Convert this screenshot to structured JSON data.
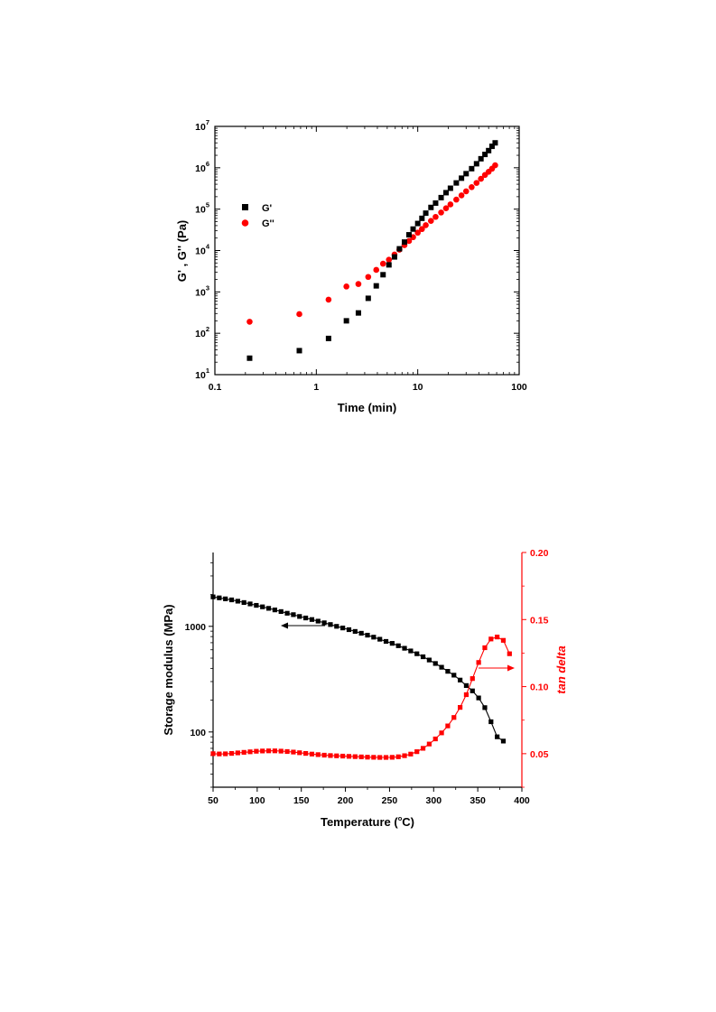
{
  "chart_data": [
    {
      "type": "scatter",
      "xlabel": "Time (min)",
      "ylabel": "G' , G'' (Pa)",
      "xscale": "log",
      "yscale": "log",
      "xlim": [
        0.1,
        100
      ],
      "ylim": [
        10,
        10000000
      ],
      "x_tick_labels": [
        "0.1",
        "1",
        "10",
        "100"
      ],
      "y_tick_labels": [
        {
          "base": "10",
          "exp": "1"
        },
        {
          "base": "10",
          "exp": "2"
        },
        {
          "base": "10",
          "exp": "3"
        },
        {
          "base": "10",
          "exp": "4"
        },
        {
          "base": "10",
          "exp": "5"
        },
        {
          "base": "10",
          "exp": "6"
        },
        {
          "base": "10",
          "exp": "7"
        }
      ],
      "legend_position": "left",
      "series": [
        {
          "name": "G'",
          "color": "#000000",
          "marker": "square",
          "x": [
            0.22,
            0.68,
            1.32,
            1.98,
            2.6,
            3.25,
            3.9,
            4.55,
            5.2,
            5.9,
            6.6,
            7.4,
            8.2,
            9.0,
            10,
            11,
            12,
            13.5,
            15,
            17,
            19,
            21,
            24,
            27,
            30,
            34,
            38,
            42,
            46,
            50,
            54,
            58
          ],
          "y": [
            25,
            38,
            75,
            200,
            310,
            700,
            1400,
            2600,
            4500,
            7000,
            11000,
            16000,
            24000,
            33000,
            45000,
            60000,
            80000,
            110000,
            140000,
            190000,
            250000,
            320000,
            430000,
            560000,
            720000,
            950000,
            1250000,
            1650000,
            2100000,
            2600000,
            3300000,
            4000000
          ]
        },
        {
          "name": "G''",
          "color": "#ff0000",
          "marker": "circle",
          "x": [
            0.22,
            0.68,
            1.32,
            1.98,
            2.6,
            3.25,
            3.9,
            4.55,
            5.2,
            5.9,
            6.6,
            7.4,
            8.2,
            9.0,
            10,
            11,
            12,
            13.5,
            15,
            17,
            19,
            21,
            24,
            27,
            30,
            34,
            38,
            42,
            46,
            50,
            54,
            58
          ],
          "y": [
            190,
            290,
            650,
            1350,
            1550,
            2300,
            3400,
            4800,
            6000,
            8000,
            10500,
            13500,
            17000,
            21000,
            27000,
            33000,
            41000,
            52000,
            65000,
            83000,
            105000,
            130000,
            170000,
            215000,
            270000,
            340000,
            430000,
            540000,
            670000,
            800000,
            950000,
            1150000
          ]
        }
      ]
    },
    {
      "type": "line",
      "xlabel": "Temperature (°C)",
      "xlabel_parts": {
        "main": "Temperature (",
        "sup": "o",
        "unit": "C)"
      },
      "ylabel": "Storage modulus (MPa)",
      "y2label": "tan delta",
      "xlim": [
        50,
        400
      ],
      "ylim": [
        30,
        5000
      ],
      "yscale": "log",
      "y2lim": [
        0.025,
        0.2
      ],
      "x_ticks": [
        50,
        100,
        150,
        200,
        250,
        300,
        350,
        400
      ],
      "y_ticks": [
        100,
        1000
      ],
      "y2_ticks": [
        0.05,
        0.1,
        0.15,
        0.2
      ],
      "y2_tick_labels": [
        "0.05",
        "0.10",
        "0.15",
        "0.20"
      ],
      "x": [
        50,
        57,
        64,
        71,
        78,
        85,
        92,
        99,
        106,
        113,
        120,
        127,
        134,
        141,
        148,
        155,
        162,
        169,
        176,
        183,
        190,
        197,
        204,
        211,
        218,
        225,
        232,
        239,
        246,
        253,
        260,
        267,
        274,
        281,
        288,
        295,
        302,
        309,
        316,
        323,
        330,
        337,
        344,
        351,
        358,
        365,
        372,
        379,
        386
      ],
      "series": [
        {
          "name": "Storage modulus",
          "axis": "left",
          "color": "#000000",
          "marker": "square",
          "y": [
            1900,
            1860,
            1820,
            1780,
            1730,
            1680,
            1630,
            1580,
            1530,
            1480,
            1430,
            1380,
            1330,
            1290,
            1240,
            1200,
            1160,
            1120,
            1080,
            1040,
            1000,
            965,
            930,
            895,
            860,
            825,
            790,
            755,
            720,
            690,
            655,
            620,
            585,
            550,
            515,
            480,
            445,
            410,
            375,
            345,
            310,
            275,
            245,
            210,
            170,
            125,
            90,
            82,
            null
          ]
        },
        {
          "name": "tan delta",
          "axis": "right",
          "color": "#ff0000",
          "marker": "square",
          "y": [
            0.05,
            0.0498,
            0.0499,
            0.0502,
            0.0506,
            0.051,
            0.0514,
            0.0518,
            0.052,
            0.0521,
            0.0521,
            0.0519,
            0.0516,
            0.0512,
            0.0507,
            0.0502,
            0.0497,
            0.0493,
            0.0489,
            0.0486,
            0.0484,
            0.0482,
            0.048,
            0.0478,
            0.0476,
            0.0474,
            0.0473,
            0.0472,
            0.0472,
            0.0473,
            0.0477,
            0.0485,
            0.0497,
            0.0515,
            0.054,
            0.0572,
            0.061,
            0.0655,
            0.0707,
            0.077,
            0.0845,
            0.094,
            0.106,
            0.118,
            0.129,
            0.1355,
            0.137,
            0.1345,
            0.1245
          ]
        }
      ],
      "annotations": [
        {
          "arrow": "left",
          "points_to": "Storage modulus"
        },
        {
          "arrow": "right",
          "points_to": "tan delta"
        }
      ]
    }
  ]
}
